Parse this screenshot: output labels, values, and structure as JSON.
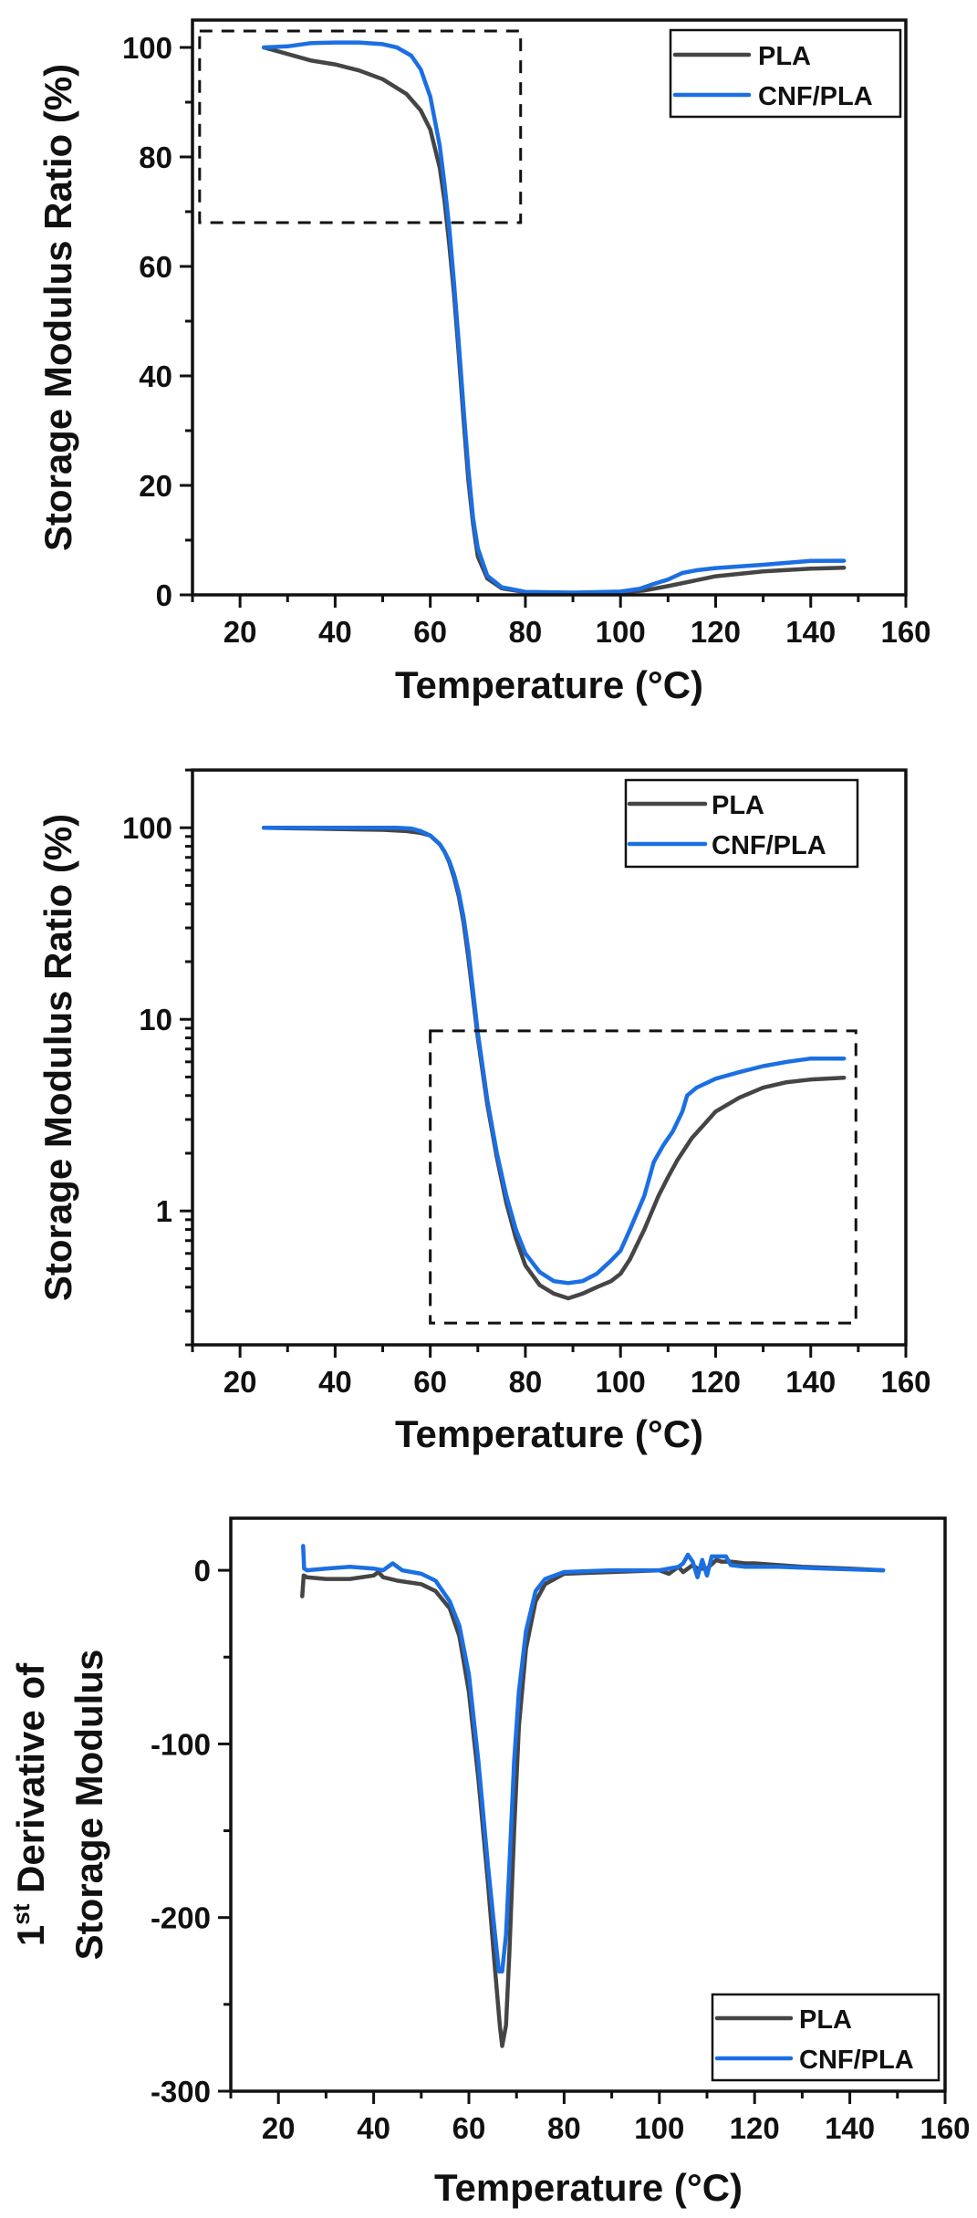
{
  "colors": {
    "PLA": "#454545",
    "CNF/PLA": "#1b6fe3"
  },
  "chart_data": [
    {
      "id": "storage-modulus-linear",
      "type": "line",
      "title": "",
      "xlabel": "Temperature (°C)",
      "ylabel": "Storage Modulus Ratio (%)",
      "xlim": [
        10,
        160
      ],
      "ylim": [
        0,
        105
      ],
      "yscale": "linear",
      "xticks": [
        20,
        40,
        60,
        80,
        100,
        120,
        140,
        160
      ],
      "xtick_labels": [
        "20",
        "40",
        "60",
        "80",
        "100",
        "120",
        "140",
        "160"
      ],
      "yticks": [
        0,
        20,
        40,
        60,
        80,
        100
      ],
      "ytick_labels": [
        "0",
        "20",
        "40",
        "60",
        "80",
        "100"
      ],
      "grid": false,
      "legend": {
        "placement": "top-right",
        "entries": [
          "PLA",
          "CNF/PLA"
        ]
      },
      "annotations": [
        {
          "type": "dashed-box",
          "x": [
            11.5,
            79
          ],
          "y": [
            68,
            103
          ]
        }
      ],
      "series": [
        {
          "name": "PLA",
          "x": [
            25,
            30,
            35,
            40,
            45,
            50,
            55,
            58,
            60,
            62,
            63,
            64,
            65,
            66,
            67,
            68,
            69,
            70,
            72,
            75,
            80,
            90,
            100,
            105,
            110,
            115,
            120,
            130,
            140,
            147
          ],
          "y": [
            100,
            98.8,
            97.6,
            96.9,
            95.8,
            94.2,
            91.5,
            88.5,
            85,
            78,
            72,
            64,
            55,
            44,
            32,
            21,
            13,
            7,
            3,
            1.2,
            0.5,
            0.35,
            0.45,
            0.8,
            1.6,
            2.5,
            3.4,
            4.3,
            4.8,
            4.96
          ]
        },
        {
          "name": "CNF/PLA",
          "x": [
            25,
            30,
            35,
            40,
            45,
            50,
            53,
            56,
            58,
            60,
            62,
            63,
            64,
            65,
            66,
            67,
            68,
            69,
            70,
            72,
            75,
            80,
            90,
            100,
            104,
            107,
            110,
            113,
            116,
            120,
            130,
            140,
            147
          ],
          "y": [
            100,
            100.2,
            100.8,
            100.9,
            100.9,
            100.6,
            100,
            98.5,
            96,
            91,
            82,
            75,
            67,
            57,
            46,
            34,
            23,
            14,
            8.5,
            3.5,
            1.4,
            0.55,
            0.42,
            0.6,
            1.1,
            2,
            2.8,
            4,
            4.5,
            4.9,
            5.5,
            6.2,
            6.24
          ]
        }
      ]
    },
    {
      "id": "storage-modulus-log",
      "type": "line",
      "title": "",
      "xlabel": "Temperature (°C)",
      "ylabel": "Storage Modulus Ratio (%)",
      "xlim": [
        10,
        160
      ],
      "ylim": [
        0.2,
        200
      ],
      "yscale": "log",
      "xticks": [
        20,
        40,
        60,
        80,
        100,
        120,
        140,
        160
      ],
      "xtick_labels": [
        "20",
        "40",
        "60",
        "80",
        "100",
        "120",
        "140",
        "160"
      ],
      "yticks": [
        1,
        10,
        100
      ],
      "ytick_labels": [
        "1",
        "10",
        "100"
      ],
      "grid": false,
      "legend": {
        "placement": "top-right",
        "entries": [
          "PLA",
          "CNF/PLA"
        ]
      },
      "annotations": [
        {
          "type": "dashed-box",
          "x": [
            60,
            149.5
          ],
          "y": [
            0.26,
            8.7
          ]
        }
      ],
      "series": [
        {
          "name": "PLA",
          "x": [
            25,
            30,
            35,
            40,
            45,
            50,
            55,
            58,
            60,
            62,
            63,
            64,
            65,
            66,
            67,
            68,
            69,
            70,
            72,
            74,
            76,
            78,
            80,
            83,
            86,
            89,
            92,
            95,
            98,
            100,
            102,
            105,
            108,
            110,
            112,
            115,
            118,
            120,
            125,
            130,
            135,
            140,
            147
          ],
          "y": [
            100,
            99.5,
            99,
            98.5,
            98,
            97.5,
            96,
            94,
            91,
            82,
            75,
            66,
            55,
            44,
            32,
            21,
            13,
            8,
            3.6,
            1.9,
            1.1,
            0.72,
            0.52,
            0.41,
            0.37,
            0.35,
            0.37,
            0.4,
            0.43,
            0.47,
            0.56,
            0.8,
            1.2,
            1.5,
            1.85,
            2.4,
            2.9,
            3.3,
            3.9,
            4.4,
            4.7,
            4.85,
            4.96
          ]
        },
        {
          "name": "CNF/PLA",
          "x": [
            25,
            30,
            35,
            40,
            45,
            50,
            53,
            56,
            58,
            60,
            62,
            63,
            64,
            65,
            66,
            67,
            68,
            69,
            70,
            72,
            74,
            76,
            78,
            80,
            83,
            86,
            89,
            92,
            95,
            98,
            100,
            102,
            105,
            107,
            109,
            111,
            113,
            114,
            116,
            120,
            125,
            130,
            135,
            140,
            147
          ],
          "y": [
            100,
            100,
            100,
            100,
            100,
            100,
            100,
            99,
            96,
            91,
            82,
            75,
            67,
            57,
            46,
            34,
            23,
            14,
            8.5,
            3.8,
            2,
            1.2,
            0.8,
            0.6,
            0.48,
            0.43,
            0.42,
            0.43,
            0.47,
            0.55,
            0.62,
            0.8,
            1.2,
            1.8,
            2.2,
            2.6,
            3.3,
            4,
            4.4,
            4.9,
            5.3,
            5.7,
            6,
            6.24,
            6.24
          ]
        }
      ]
    },
    {
      "id": "storage-modulus-derivative",
      "type": "line",
      "title": "",
      "xlabel": "Temperature (°C)",
      "ylabel_line1": "1st Derivative of",
      "ylabel_line1_main": "1",
      "ylabel_line1_sup": "st",
      "ylabel_line1_rest": " Derivative of",
      "ylabel_line2": "Storage Modulus",
      "xlim": [
        10,
        160
      ],
      "ylim": [
        -300,
        30
      ],
      "yscale": "linear",
      "xticks": [
        20,
        40,
        60,
        80,
        100,
        120,
        140,
        160
      ],
      "xtick_labels": [
        "20",
        "40",
        "60",
        "80",
        "100",
        "120",
        "140",
        "160"
      ],
      "yticks": [
        0,
        -100,
        -200,
        -300
      ],
      "ytick_labels": [
        "0",
        "-100",
        "-200",
        "-300"
      ],
      "grid": false,
      "legend": {
        "placement": "bottom-right",
        "entries": [
          "PLA",
          "CNF/PLA"
        ]
      },
      "annotations": [],
      "series": [
        {
          "name": "PLA",
          "x": [
            25,
            25.3,
            26,
            30,
            35,
            40,
            41,
            42,
            45,
            50,
            53,
            56,
            58,
            60,
            62,
            64,
            65.5,
            66.5,
            67,
            67.8,
            68.5,
            69.5,
            70.5,
            72,
            74,
            76,
            80,
            90,
            100,
            102,
            104,
            105,
            107,
            108,
            110,
            112,
            113,
            115,
            118,
            120,
            125,
            130,
            140,
            147
          ],
          "y": [
            -15,
            -3,
            -4,
            -5,
            -5,
            -3,
            -1,
            -4,
            -6,
            -8,
            -12,
            -22,
            -38,
            -70,
            -120,
            -180,
            -230,
            -262,
            -274,
            -262,
            -220,
            -150,
            -90,
            -45,
            -18,
            -8,
            -2,
            -1,
            0,
            -2,
            2,
            -1,
            3,
            1,
            1,
            6,
            5,
            5,
            4,
            4,
            3,
            2,
            1,
            0
          ]
        },
        {
          "name": "CNF/PLA",
          "x": [
            25.2,
            25.4,
            26,
            30,
            35,
            40,
            42,
            44,
            46,
            50,
            53,
            56,
            58,
            60,
            62,
            64,
            65.5,
            66.3,
            67,
            67.8,
            68.5,
            69.5,
            70.5,
            72,
            74,
            76,
            80,
            90,
            100,
            104,
            105,
            106,
            107,
            108,
            109,
            110,
            111,
            112,
            114,
            115,
            118,
            125,
            135,
            147
          ],
          "y": [
            14,
            1,
            0,
            1,
            2,
            1,
            0,
            4,
            0,
            -2,
            -6,
            -18,
            -32,
            -60,
            -110,
            -170,
            -210,
            -231,
            -231,
            -210,
            -170,
            -110,
            -70,
            -35,
            -12,
            -5,
            -1,
            0,
            0,
            2,
            4,
            9,
            5,
            -4,
            6,
            -3,
            8,
            8,
            8,
            3,
            2,
            2,
            1,
            0
          ]
        }
      ]
    }
  ]
}
